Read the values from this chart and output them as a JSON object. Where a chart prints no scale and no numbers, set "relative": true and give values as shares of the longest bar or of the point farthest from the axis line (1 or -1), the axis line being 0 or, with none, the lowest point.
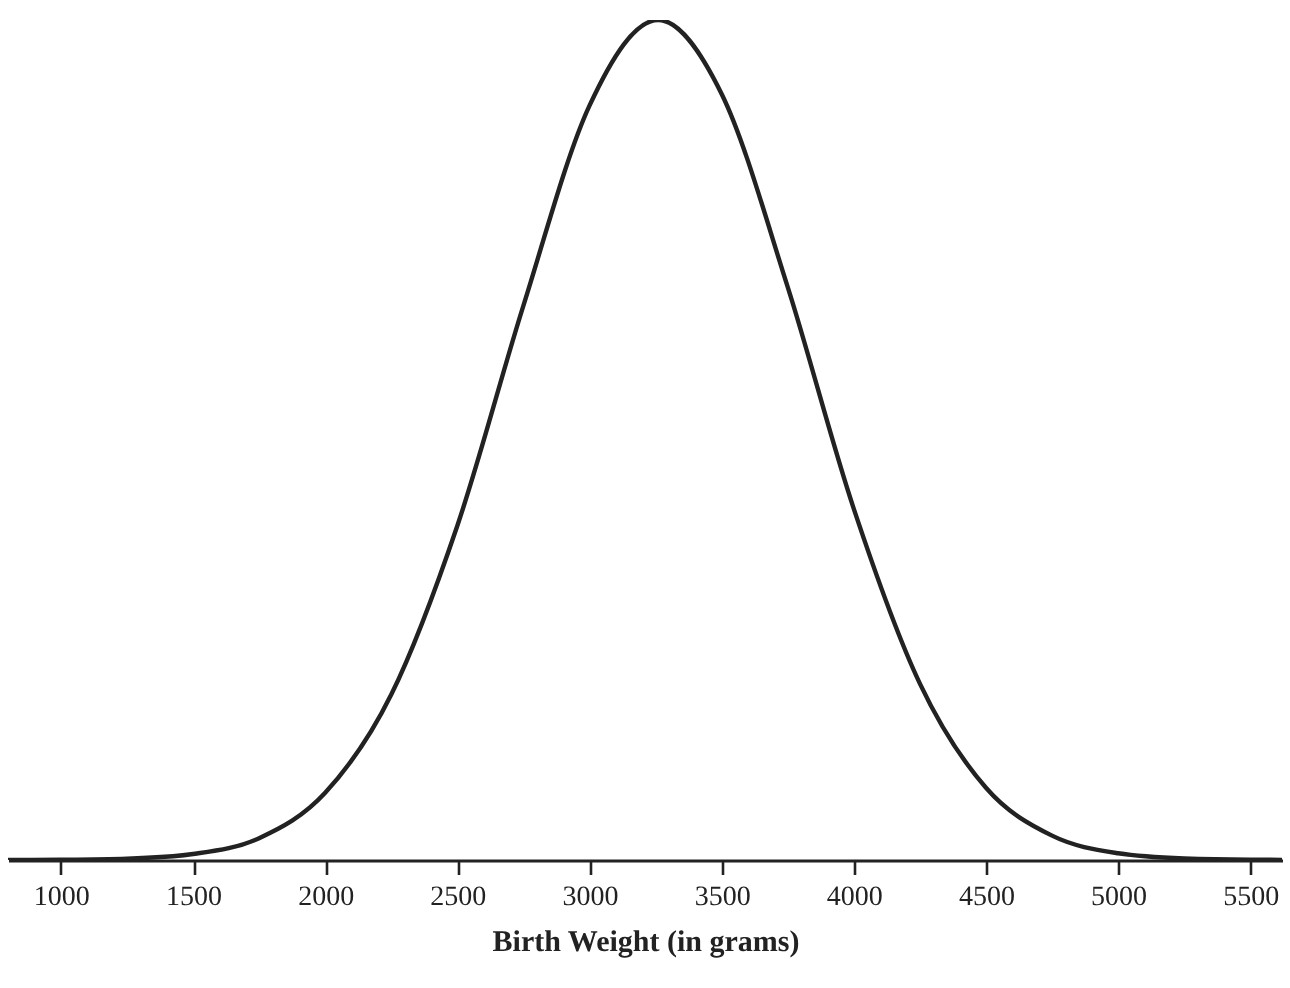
{
  "chart_data": {
    "type": "line",
    "relative": true,
    "xlabel": "Birth Weight (in grams)",
    "x": [
      800,
      1000,
      1250,
      1500,
      1750,
      2000,
      2250,
      2500,
      2750,
      3000,
      3260,
      3500,
      3750,
      4000,
      4250,
      4500,
      4750,
      5000,
      5250,
      5500,
      5620
    ],
    "series": [
      {
        "color": "#222222",
        "values": [
          0,
          0.0003,
          0.0016,
          0.0072,
          0.026,
          0.08,
          0.197,
          0.398,
          0.66,
          0.898,
          1,
          0.912,
          0.682,
          0.418,
          0.21,
          0.086,
          0.029,
          0.008,
          0.0018,
          0.0003,
          0.0002
        ]
      }
    ],
    "xlim": [
      800,
      5620
    ],
    "xticks": [
      1000,
      1500,
      2000,
      2500,
      3000,
      3500,
      4000,
      4500,
      5000,
      5500
    ],
    "marker": "none",
    "line_style": "solid"
  }
}
